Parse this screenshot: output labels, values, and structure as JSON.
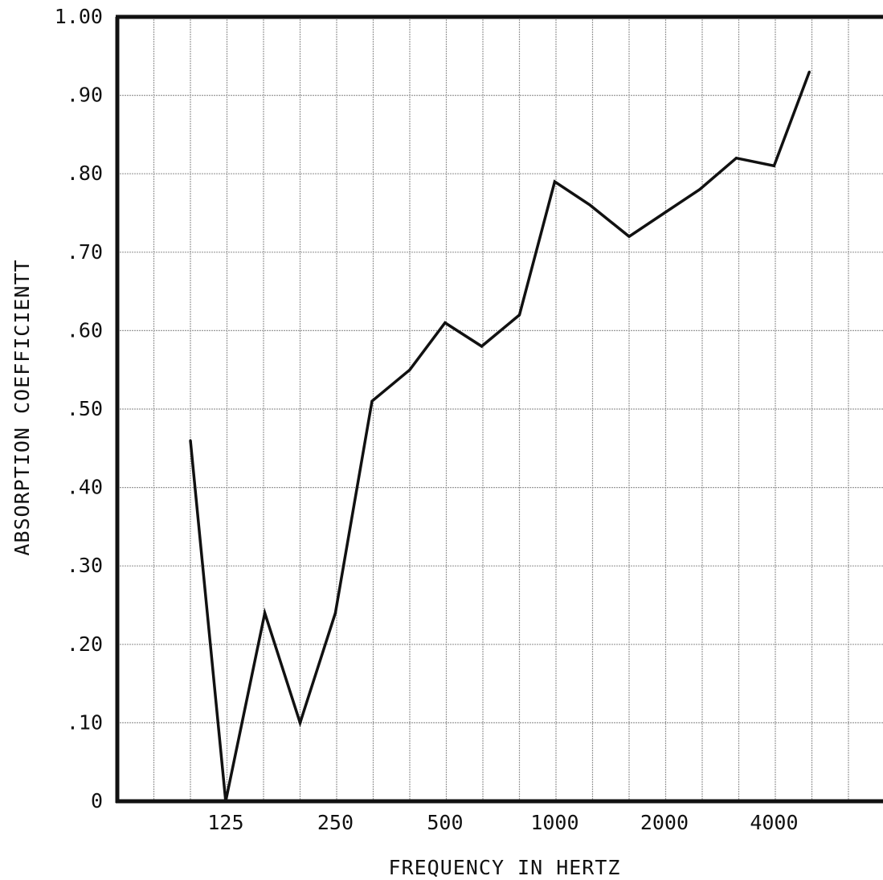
{
  "chart_data": {
    "type": "line",
    "title": "",
    "xlabel": "FREQUENCY IN HERTZ",
    "ylabel": "ABSORPTION COEFFICIENTT",
    "x_scale": "log2",
    "x_tick_labels": [
      "125",
      "250",
      "500",
      "1000",
      "2000",
      "4000"
    ],
    "x_tick_values": [
      125,
      250,
      500,
      1000,
      2000,
      4000
    ],
    "y_tick_labels": [
      "0",
      ".10",
      ".20",
      ".30",
      ".40",
      ".50",
      ".60",
      ".70",
      ".80",
      ".90",
      "1.00"
    ],
    "ylim": [
      0,
      1.0
    ],
    "grid": true,
    "legend": "none",
    "line_color": "#111111",
    "grid_color": "#9a9a9a",
    "series": [
      {
        "x": [
          100,
          125,
          160,
          200,
          250,
          315,
          400,
          500,
          630,
          800,
          1000,
          1250,
          1600,
          2000,
          2500,
          3150,
          4000,
          5000
        ],
        "values": [
          0.46,
          0.0,
          0.24,
          0.1,
          0.24,
          0.51,
          0.55,
          0.61,
          0.58,
          0.62,
          0.79,
          0.76,
          0.72,
          0.75,
          0.78,
          0.82,
          0.81,
          0.93
        ]
      }
    ]
  }
}
